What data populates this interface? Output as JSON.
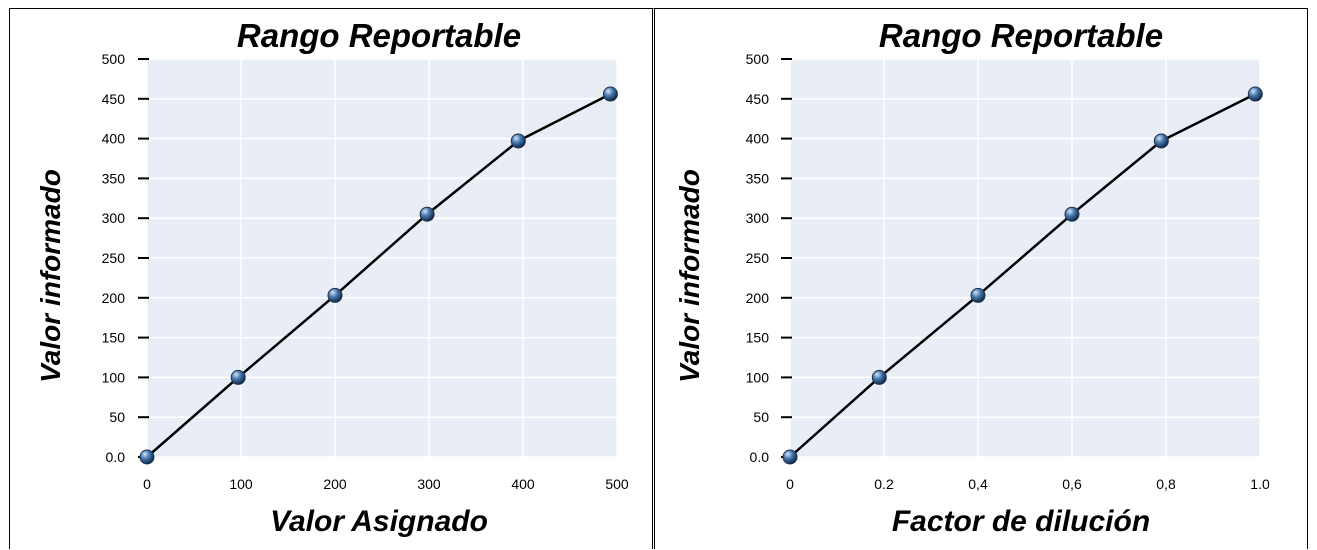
{
  "chart_data": [
    {
      "type": "line",
      "title": "Rango Reportable",
      "xlabel": "Valor Asignado",
      "ylabel": "Valor informado",
      "x_tick_labels": [
        "0",
        "100",
        "200",
        "300",
        "400",
        "500"
      ],
      "y_tick_labels": [
        "0.0",
        "50",
        "100",
        "150",
        "200",
        "250",
        "300",
        "350",
        "400",
        "450",
        "500"
      ],
      "xlim": [
        0,
        500
      ],
      "ylim": [
        0,
        500
      ],
      "grid": true,
      "x": [
        0,
        97,
        200,
        298,
        395,
        493
      ],
      "y": [
        0,
        100,
        203,
        305,
        397,
        456
      ],
      "colors": {
        "plot_bg": "#e9edf5",
        "line": "#000000",
        "marker": "#4a7bb0"
      }
    },
    {
      "type": "line",
      "title": "Rango Reportable",
      "xlabel": "Factor de dilución",
      "ylabel": "Valor informado",
      "x_tick_labels": [
        "0",
        "0.2",
        "0,4",
        "0,6",
        "0,8",
        "1.0"
      ],
      "y_tick_labels": [
        "0.0",
        "50",
        "100",
        "150",
        "200",
        "250",
        "300",
        "350",
        "400",
        "450",
        "500"
      ],
      "xlim": [
        0,
        1
      ],
      "ylim": [
        0,
        500
      ],
      "grid": true,
      "x": [
        0,
        0.19,
        0.4,
        0.6,
        0.79,
        0.99
      ],
      "y": [
        0,
        100,
        203,
        305,
        397,
        456
      ],
      "colors": {
        "plot_bg": "#e9edf5",
        "line": "#000000",
        "marker": "#4a7bb0"
      }
    }
  ]
}
